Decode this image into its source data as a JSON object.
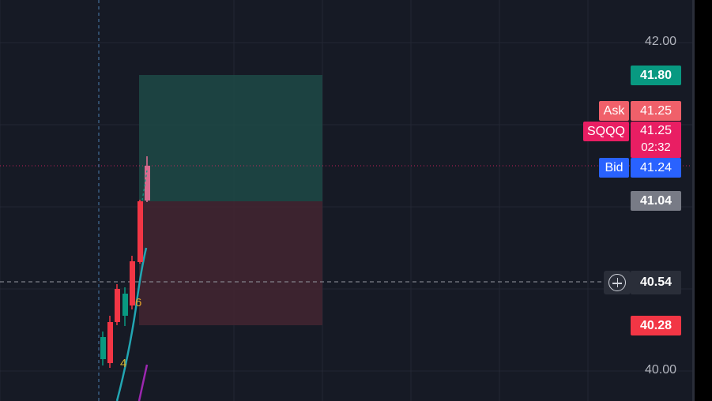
{
  "symbol": "SQQQ",
  "chart": {
    "price_min": 39.9,
    "price_max": 42.05,
    "axis_ticks": [
      "42.00",
      "40.00"
    ],
    "colors": {
      "background": "#161a25",
      "grid": "#232733",
      "up": "#089981",
      "down": "#f23645",
      "ema": "#22a6b3",
      "sma": "#9c27b0",
      "profit_zone": "#1d4a47",
      "loss_zone": "#432631"
    }
  },
  "price_labels": {
    "target": "41.80",
    "ask_label": "Ask",
    "ask": "41.25",
    "last_label": "SQQQ",
    "last": "41.25",
    "countdown": "02:32",
    "bid_label": "Bid",
    "bid": "41.24",
    "entry": "41.04",
    "crosshair": "40.54",
    "stop": "40.28"
  },
  "wave_labels": [
    "6",
    "4"
  ],
  "icons": {
    "crosshair_add": "plus-circle-icon"
  }
}
